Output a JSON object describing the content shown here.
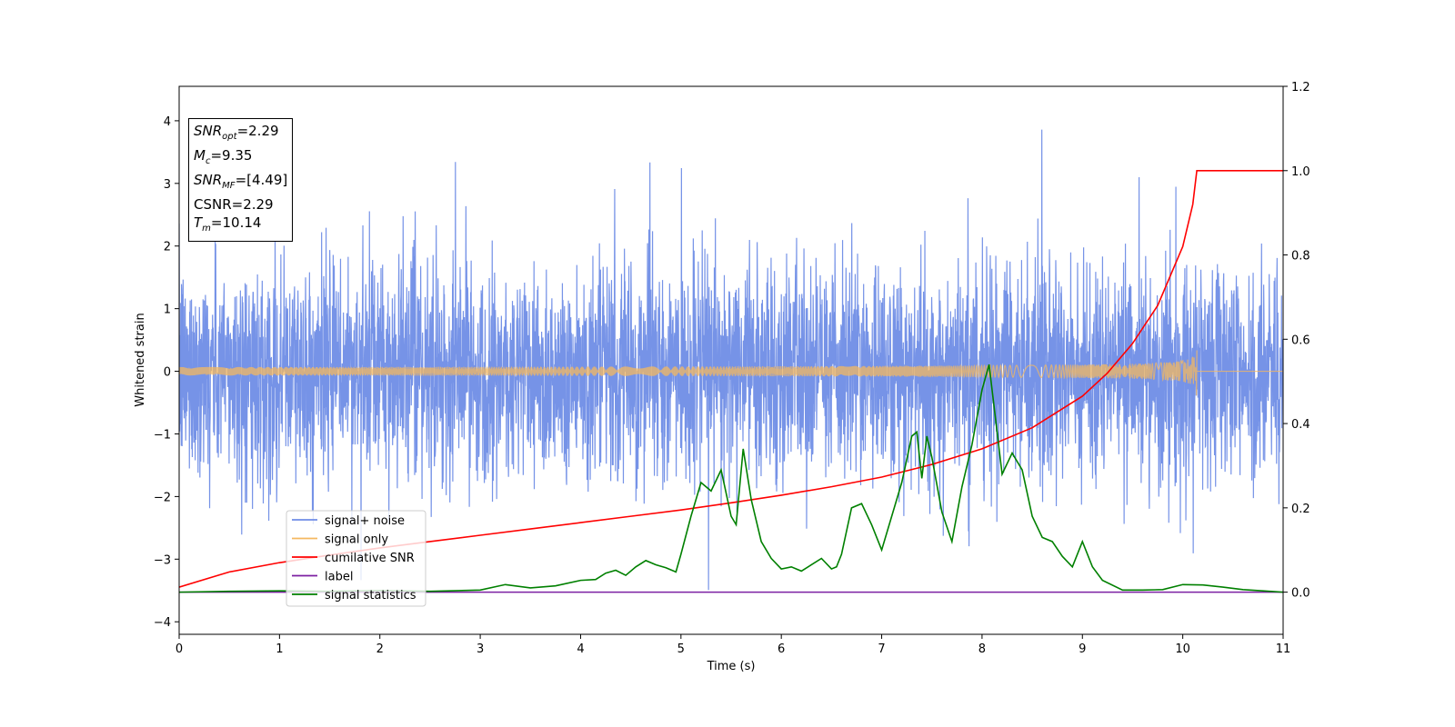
{
  "chart_data": {
    "type": "line",
    "xlabel": "Time (s)",
    "ylabel": "Whitened strain",
    "xlim": [
      0,
      11
    ],
    "ylim": [
      -4.2,
      4.55
    ],
    "ylim_right": [
      -0.1,
      1.2
    ],
    "xticks": [
      "0",
      "1",
      "2",
      "3",
      "4",
      "5",
      "6",
      "7",
      "8",
      "9",
      "10",
      "11"
    ],
    "yticks": [
      "−4",
      "−3",
      "−2",
      "−1",
      "0",
      "1",
      "2",
      "3",
      "4"
    ],
    "yticks_right": [
      "0.0",
      "0.2",
      "0.4",
      "0.6",
      "0.8",
      "1.0",
      "1.2"
    ],
    "legend_position": "lower-left",
    "grid": false,
    "annotation": {
      "snr_opt": "=2.29",
      "mc": "=9.35",
      "snr_mf": "=[4.49]",
      "csnr": "CSNR=2.29",
      "tm": "=10.14"
    },
    "series": [
      {
        "name": "signal+ noise",
        "axis": "left",
        "color": "#6f8de6",
        "description_values": {
          "noise_std": 0.85,
          "max": 4.15,
          "min": -3.8
        }
      },
      {
        "name": "signal only",
        "axis": "left",
        "color": "#f4b860",
        "chirp_end_time": 10.14,
        "chirp_peak_amplitude": 0.4
      },
      {
        "name": "cumilative SNR",
        "axis": "right",
        "color": "#ff0000",
        "x": [
          0,
          0.5,
          1,
          1.5,
          2,
          2.5,
          3,
          3.5,
          4,
          4.5,
          5,
          5.5,
          6,
          6.5,
          7,
          7.5,
          8,
          8.5,
          9,
          9.25,
          9.5,
          9.75,
          10,
          10.1,
          10.14,
          10.2,
          11
        ],
        "y": [
          0.012,
          0.048,
          0.07,
          0.088,
          0.105,
          0.12,
          0.135,
          0.15,
          0.165,
          0.18,
          0.195,
          0.212,
          0.23,
          0.25,
          0.273,
          0.303,
          0.34,
          0.39,
          0.465,
          0.52,
          0.59,
          0.68,
          0.82,
          0.92,
          1.0,
          1.0,
          1.0
        ]
      },
      {
        "name": "label",
        "axis": "right",
        "color": "#7b1fa2",
        "x": [
          0,
          11
        ],
        "y": [
          0,
          0
        ]
      },
      {
        "name": "signal statistics",
        "axis": "right",
        "color": "#008000",
        "x": [
          0,
          0.5,
          1,
          1.5,
          2,
          2.5,
          3,
          3.25,
          3.5,
          3.75,
          4,
          4.15,
          4.25,
          4.35,
          4.45,
          4.55,
          4.65,
          4.75,
          4.85,
          4.95,
          5.0,
          5.1,
          5.2,
          5.3,
          5.4,
          5.5,
          5.55,
          5.62,
          5.7,
          5.8,
          5.9,
          6.0,
          6.1,
          6.2,
          6.3,
          6.4,
          6.5,
          6.55,
          6.6,
          6.7,
          6.8,
          6.9,
          7.0,
          7.1,
          7.2,
          7.3,
          7.35,
          7.4,
          7.45,
          7.5,
          7.6,
          7.7,
          7.8,
          7.9,
          8.0,
          8.07,
          8.15,
          8.2,
          8.3,
          8.4,
          8.5,
          8.6,
          8.7,
          8.8,
          8.9,
          9.0,
          9.1,
          9.2,
          9.4,
          9.6,
          9.8,
          10.0,
          10.2,
          10.4,
          10.6,
          10.8,
          11.0
        ],
        "y": [
          0,
          0.002,
          0.003,
          0.002,
          0.004,
          0.002,
          0.005,
          0.018,
          0.01,
          0.015,
          0.028,
          0.03,
          0.045,
          0.052,
          0.04,
          0.06,
          0.075,
          0.065,
          0.058,
          0.048,
          0.09,
          0.18,
          0.26,
          0.24,
          0.29,
          0.18,
          0.16,
          0.34,
          0.22,
          0.12,
          0.08,
          0.055,
          0.06,
          0.05,
          0.065,
          0.08,
          0.055,
          0.06,
          0.09,
          0.2,
          0.21,
          0.16,
          0.1,
          0.18,
          0.26,
          0.37,
          0.38,
          0.27,
          0.37,
          0.32,
          0.19,
          0.12,
          0.25,
          0.35,
          0.48,
          0.54,
          0.38,
          0.28,
          0.33,
          0.29,
          0.18,
          0.13,
          0.12,
          0.085,
          0.06,
          0.12,
          0.06,
          0.028,
          0.005,
          0.005,
          0.006,
          0.018,
          0.017,
          0.012,
          0.006,
          0.003,
          0.0
        ]
      }
    ]
  }
}
